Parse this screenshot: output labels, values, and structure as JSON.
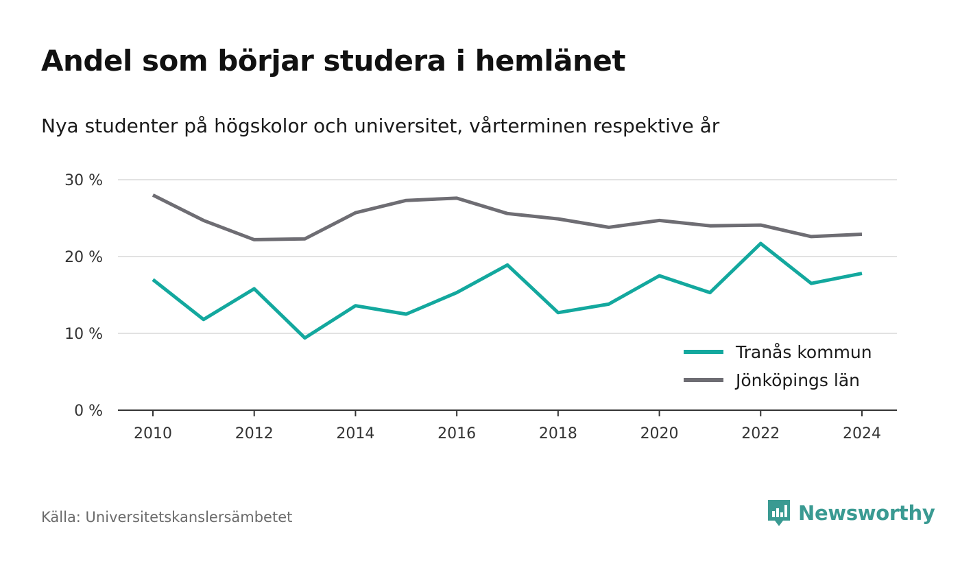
{
  "title": "Andel som börjar studera i hemlänet",
  "subtitle": "Nya studenter på högskolor och universitet, vårterminen respektive år",
  "source": "Källa: Universitetskanslersämbetet",
  "brand": {
    "name": "Newsworthy",
    "icon": "newsworthy-logo-icon",
    "color": "#3a9a92"
  },
  "chart_data": {
    "type": "line",
    "x": [
      2010,
      2011,
      2012,
      2013,
      2014,
      2015,
      2016,
      2017,
      2018,
      2019,
      2020,
      2021,
      2022,
      2023,
      2024
    ],
    "x_ticks": [
      2010,
      2012,
      2014,
      2016,
      2018,
      2020,
      2022,
      2024
    ],
    "x_tick_labels": [
      "2010",
      "2012",
      "2014",
      "2016",
      "2018",
      "2020",
      "2022",
      "2024"
    ],
    "ylim": [
      0,
      30
    ],
    "y_ticks": [
      0,
      10,
      20,
      30
    ],
    "y_tick_labels": [
      "0 %",
      "10 %",
      "20 %",
      "30 %"
    ],
    "grid": true,
    "legend_position": "bottom-right",
    "series": [
      {
        "name": "Tranås kommun",
        "color": "#13a89e",
        "values": [
          17.0,
          11.8,
          15.8,
          9.4,
          13.6,
          12.5,
          15.3,
          18.9,
          12.7,
          13.8,
          17.5,
          15.3,
          21.7,
          16.5,
          17.8
        ]
      },
      {
        "name": "Jönköpings län",
        "color": "#6e6d73",
        "values": [
          28.0,
          24.7,
          22.2,
          22.3,
          25.7,
          27.3,
          27.6,
          25.6,
          24.9,
          23.8,
          24.7,
          24.0,
          24.1,
          22.6,
          22.9
        ]
      }
    ]
  }
}
